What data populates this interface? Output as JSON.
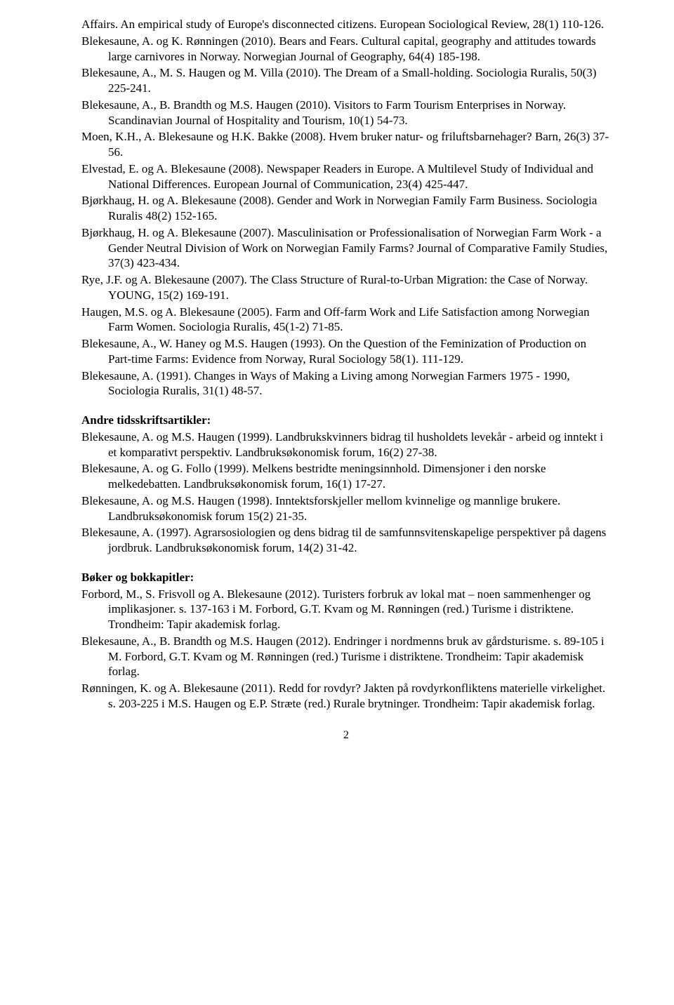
{
  "entries_a": [
    "Affairs. An empirical study of Europe's disconnected citizens. European Sociological Review, 28(1) 110-126.",
    "Blekesaune, A. og K. Rønningen (2010). Bears and Fears. Cultural capital, geography and attitudes towards large carnivores in Norway. Norwegian Journal of Geography, 64(4) 185-198.",
    "Blekesaune, A., M. S. Haugen og M. Villa (2010). The Dream of a Small-holding. Sociologia Ruralis, 50(3) 225-241.",
    "Blekesaune, A., B. Brandth og M.S. Haugen (2010). Visitors to Farm Tourism Enterprises in Norway. Scandinavian Journal of Hospitality and Tourism, 10(1) 54-73.",
    "Moen, K.H., A. Blekesaune og H.K. Bakke (2008). Hvem bruker natur- og friluftsbarnehager? Barn, 26(3) 37-56.",
    "Elvestad, E. og A. Blekesaune (2008). Newspaper Readers in Europe. A Multilevel Study of Individual and National Differences. European Journal of Communication, 23(4) 425-447.",
    "Bjørkhaug, H. og A. Blekesaune (2008). Gender and Work in Norwegian Family Farm Business. Sociologia Ruralis 48(2) 152-165.",
    "Bjørkhaug, H. og A. Blekesaune (2007). Masculinisation or Professionalisation of Norwegian Farm Work - a Gender Neutral Division of Work on Norwegian Family Farms? Journal of Comparative Family Studies, 37(3) 423-434.",
    "Rye, J.F. og A. Blekesaune (2007). The Class Structure of Rural-to-Urban Migration: the Case of Norway. YOUNG, 15(2) 169-191.",
    "Haugen, M.S. og A. Blekesaune (2005). Farm and Off-farm Work and Life Satisfaction among Norwegian Farm Women. Sociologia Ruralis, 45(1-2) 71-85.",
    "Blekesaune, A., W. Haney og M.S. Haugen (1993). On the Question of the Feminization of Production on Part-time Farms: Evidence from Norway, Rural Sociology 58(1). 111-129.",
    "Blekesaune, A. (1991). Changes in Ways of Making a Living among Norwegian Farmers 1975 - 1990, Sociologia Ruralis, 31(1) 48-57."
  ],
  "heading_b": "Andre tidsskriftsartikler:",
  "entries_b": [
    "Blekesaune, A. og M.S. Haugen (1999). Landbrukskvinners bidrag til husholdets levekår - arbeid og inntekt i et komparativt perspektiv. Landbruksøkonomisk forum, 16(2) 27-38.",
    "Blekesaune, A. og G. Follo (1999). Melkens bestridte meningsinnhold. Dimensjoner i den norske melkedebatten. Landbruksøkonomisk forum, 16(1) 17-27.",
    "Blekesaune, A. og M.S. Haugen (1998). Inntektsforskjeller mellom kvinnelige og mannlige brukere. Landbruksøkonomisk forum 15(2) 21-35.",
    "Blekesaune, A. (1997). Agrarsosiologien og dens bidrag til de samfunnsvitenskapelige perspektiver på dagens jordbruk. Landbruksøkonomisk forum, 14(2) 31-42."
  ],
  "heading_c": "Bøker og bokkapitler:",
  "entries_c": [
    "Forbord, M., S. Frisvoll og A. Blekesaune (2012). Turisters forbruk av lokal mat – noen sammenhenger og implikasjoner. s. 137-163 i M. Forbord, G.T. Kvam og M. Rønningen (red.) Turisme i distriktene. Trondheim: Tapir akademisk forlag.",
    "Blekesaune, A., B. Brandth og M.S. Haugen (2012). Endringer i nordmenns bruk av gårdsturisme. s. 89-105 i M. Forbord, G.T. Kvam og M. Rønningen (red.) Turisme i distriktene. Trondheim: Tapir akademisk forlag.",
    "Rønningen, K. og A. Blekesaune (2011). Redd for rovdyr? Jakten på rovdyrkonfliktens materielle virkelighet. s. 203-225 i M.S. Haugen og E.P. Stræte (red.) Rurale brytninger. Trondheim: Tapir akademisk forlag."
  ],
  "page_number": "2"
}
